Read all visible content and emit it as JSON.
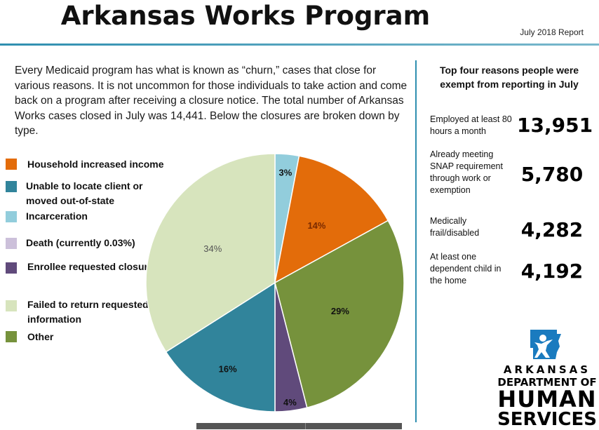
{
  "header": {
    "title": "Arkansas Works Program",
    "report_date": "July 2018 Report"
  },
  "intro": "Every Medicaid program has what is known as “churn,” cases that close for various reasons. It is not uncommon for those individuals to take action and come back on a program after receiving a closure notice. The total number of Arkansas Works cases closed in July was 14,441. Below the closures are broken down by type.",
  "legend": [
    {
      "label": "Household increased income",
      "color": "#e36c0a"
    },
    {
      "label": "Unable to locate client or moved out-of-state",
      "color": "#31849b"
    },
    {
      "label": "Incarceration",
      "color": "#92cddc"
    },
    {
      "label": "Death (currently 0.03%)",
      "color": "#ccc0da"
    },
    {
      "label": "Enrollee requested closure",
      "color": "#604a7b"
    },
    {
      "label": "Failed to return requested information",
      "color": "#d7e4bd"
    },
    {
      "label": "Other",
      "color": "#76923c"
    }
  ],
  "chart_data": {
    "type": "pie",
    "slices": [
      {
        "name": "Incarceration",
        "value": 3,
        "label": "3%",
        "color": "#92cddc"
      },
      {
        "name": "Household increased income",
        "value": 14,
        "label": "14%",
        "color": "#e36c0a"
      },
      {
        "name": "Other",
        "value": 29,
        "label": "29%",
        "color": "#76923c"
      },
      {
        "name": "Enrollee requested closure",
        "value": 4,
        "label": "4%",
        "color": "#604a7b"
      },
      {
        "name": "Unable to locate client or moved out-of-state",
        "value": 16,
        "label": "16%",
        "color": "#31849b"
      },
      {
        "name": "Failed to return requested information",
        "value": 34,
        "label": "34%",
        "color": "#d7e4bd"
      }
    ],
    "start": "12 o'clock",
    "direction": "clockwise"
  },
  "exemptions": {
    "heading": "Top four reasons people were exempt from reporting in July",
    "items": [
      {
        "label": "Employed at least 80 hours a month",
        "value": "13,951"
      },
      {
        "label": "Already meeting SNAP requirement through work or exemption",
        "value": "5,780"
      },
      {
        "label": "Medically frail/disabled",
        "value": "4,282"
      },
      {
        "label": "At least one dependent child in the home",
        "value": "4,192"
      }
    ]
  },
  "logo": {
    "line1": "ARKANSAS",
    "line2": "DEPARTMENT OF",
    "line3": "HUMAN",
    "line4": "SERVICES",
    "icon": "arkansas-state-person-icon",
    "color": "#1a7bbf"
  }
}
